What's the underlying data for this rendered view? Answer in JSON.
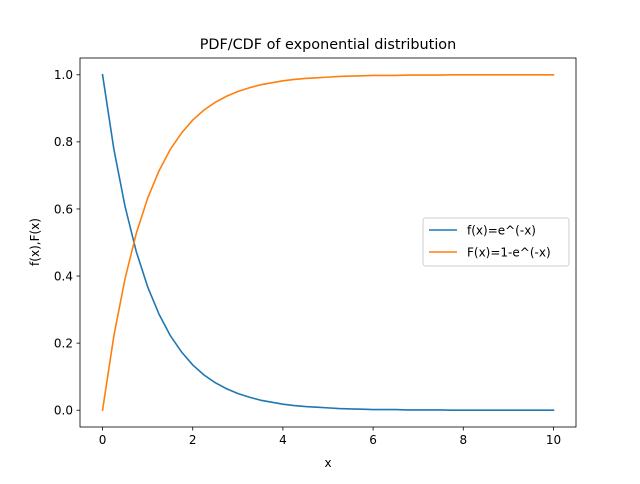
{
  "chart_data": {
    "type": "line",
    "title": "PDF/CDF of exponential distribution",
    "xlabel": "x",
    "ylabel": "f(x),F(x)",
    "xlim": [
      -0.5,
      10.5
    ],
    "ylim": [
      -0.05,
      1.05
    ],
    "x_ticks": [
      "0",
      "2",
      "4",
      "6",
      "8",
      "10"
    ],
    "y_ticks": [
      "0.0",
      "0.2",
      "0.4",
      "0.6",
      "0.8",
      "1.0"
    ],
    "grid": false,
    "legend_position": "center-right",
    "x": [
      0,
      0.25,
      0.5,
      0.75,
      1,
      1.25,
      1.5,
      1.75,
      2,
      2.25,
      2.5,
      2.75,
      3,
      3.25,
      3.5,
      3.75,
      4,
      4.25,
      4.5,
      4.75,
      5,
      5.25,
      5.5,
      5.75,
      6,
      6.25,
      6.5,
      6.75,
      7,
      7.25,
      7.5,
      7.75,
      8,
      8.25,
      8.5,
      8.75,
      9,
      9.25,
      9.5,
      9.75,
      10
    ],
    "series": [
      {
        "name": "f(x)=e^(-x)",
        "color": "#1f77b4",
        "values": [
          1.0,
          0.779,
          0.607,
          0.472,
          0.368,
          0.287,
          0.223,
          0.174,
          0.135,
          0.105,
          0.082,
          0.064,
          0.05,
          0.039,
          0.03,
          0.024,
          0.018,
          0.014,
          0.011,
          0.009,
          0.007,
          0.005,
          0.004,
          0.003,
          0.002,
          0.002,
          0.002,
          0.001,
          0.001,
          0.001,
          0.001,
          0.0,
          0.0,
          0.0,
          0.0,
          0.0,
          0.0,
          0.0,
          0.0,
          0.0,
          0.0
        ]
      },
      {
        "name": "F(x)=1-e^(-x)",
        "color": "#ff7f0e",
        "values": [
          0.0,
          0.221,
          0.393,
          0.528,
          0.632,
          0.713,
          0.777,
          0.826,
          0.865,
          0.895,
          0.918,
          0.936,
          0.95,
          0.961,
          0.97,
          0.976,
          0.982,
          0.986,
          0.989,
          0.991,
          0.993,
          0.995,
          0.996,
          0.997,
          0.998,
          0.998,
          0.998,
          0.999,
          0.999,
          0.999,
          0.999,
          1.0,
          1.0,
          1.0,
          1.0,
          1.0,
          1.0,
          1.0,
          1.0,
          1.0,
          1.0
        ]
      }
    ]
  }
}
